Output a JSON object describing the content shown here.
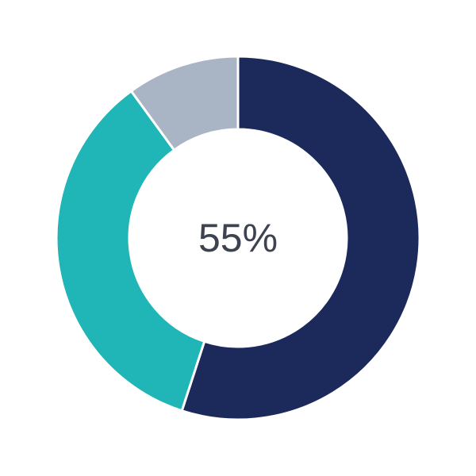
{
  "chart_data": {
    "type": "pie",
    "donut": true,
    "center_label": "55%",
    "slices": [
      {
        "value": 55,
        "color": "#1c2a5b"
      },
      {
        "value": 35,
        "color": "#20b5b6"
      },
      {
        "value": 10,
        "color": "#a9b4c4"
      }
    ],
    "start": "top",
    "direction": "clockwise"
  }
}
